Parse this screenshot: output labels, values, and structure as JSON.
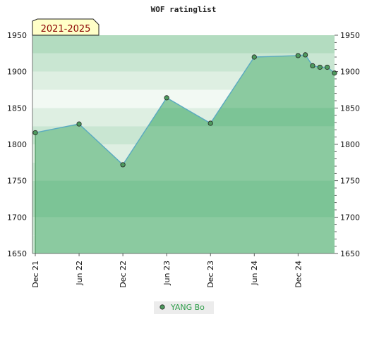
{
  "chart_data": {
    "type": "area",
    "title": "WOF ratinglist",
    "period_label": "2021-2025",
    "x_tick_labels": [
      "Dec 21",
      "Jun 22",
      "Dec 22",
      "Jun 23",
      "Dec 23",
      "Jun 24",
      "Dec 24"
    ],
    "ylim": [
      1650,
      1950
    ],
    "y_ticks": [
      1650,
      1700,
      1750,
      1800,
      1850,
      1900,
      1950
    ],
    "series": [
      {
        "name": "YANG Bo",
        "color": "#5aaac0",
        "marker_color": "#4e9a5e",
        "x": [
          "2021-12",
          "2022-06",
          "2022-12",
          "2023-06",
          "2023-12",
          "2024-06",
          "2024-12",
          "2025-01",
          "2025-02",
          "2025-03",
          "2025-04",
          "2025-05"
        ],
        "values": [
          1816,
          1828,
          1772,
          1864,
          1829,
          1920,
          1922,
          1923,
          1908,
          1906,
          1906,
          1898
        ]
      }
    ]
  },
  "colors": {
    "fill": "#8bcaa0",
    "band_light_1": "#f2f9f3",
    "band_light_2": "#deefe2",
    "band_light_3": "#c9e6d2",
    "band_mid": "#b3dcc0",
    "band_dark": "#7cc496",
    "badge_bg": "#ffffc8"
  }
}
